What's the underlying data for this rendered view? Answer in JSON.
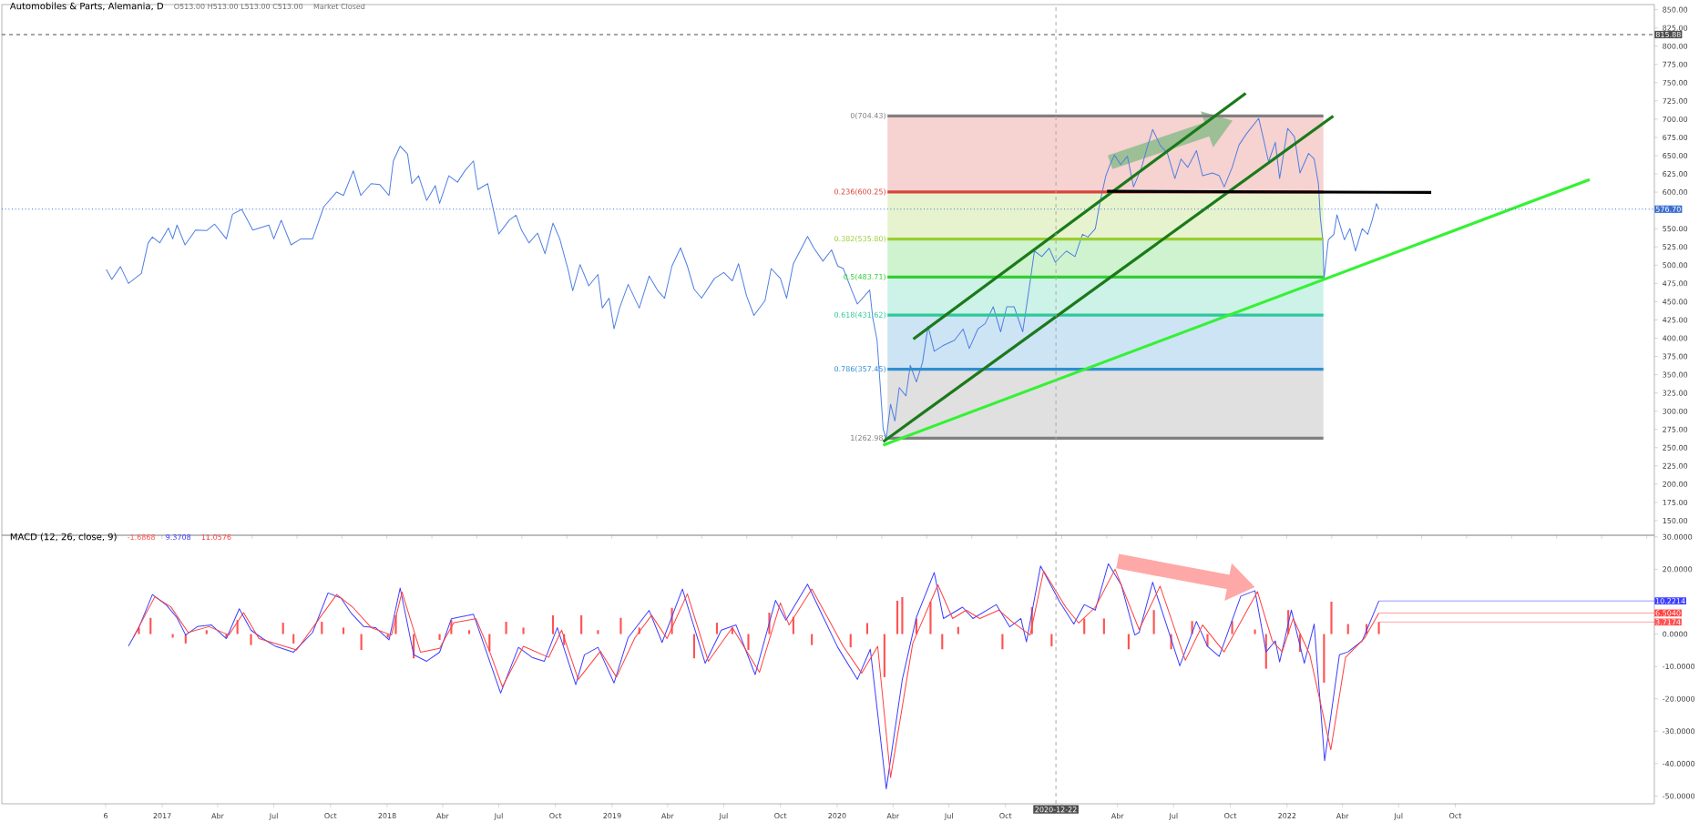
{
  "chart_data": [
    {
      "type": "line",
      "title": "Automobiles & Parts, Alemania, D",
      "annotations": [
        "O513.00 H513.00 L513.00 C513.00",
        "Market Closed"
      ],
      "xlim": [
        "2016-04-15",
        "2023-08-20"
      ],
      "ylim": [
        130,
        857
      ],
      "yticks": [
        {
          "value": 150,
          "label": "150.00"
        },
        {
          "value": 175,
          "label": "175.00"
        },
        {
          "value": 200,
          "label": "200.00"
        },
        {
          "value": 225,
          "label": "225.00"
        },
        {
          "value": 250,
          "label": "250.00"
        },
        {
          "value": 275,
          "label": "275.00"
        },
        {
          "value": 300,
          "label": "300.00"
        },
        {
          "value": 325,
          "label": "325.00"
        },
        {
          "value": 350,
          "label": "350.00"
        },
        {
          "value": 375,
          "label": "375.00"
        },
        {
          "value": 400,
          "label": "400.00"
        },
        {
          "value": 425,
          "label": "425.00"
        },
        {
          "value": 450,
          "label": "450.00"
        },
        {
          "value": 475,
          "label": "475.00"
        },
        {
          "value": 500,
          "label": "500.00"
        },
        {
          "value": 525,
          "label": "525.00"
        },
        {
          "value": 550,
          "label": "550.00"
        },
        {
          "value": 575,
          "label": null
        },
        {
          "value": 600,
          "label": "600.00"
        },
        {
          "value": 625,
          "label": "625.00"
        },
        {
          "value": 650,
          "label": "650.00"
        },
        {
          "value": 675,
          "label": "675.00"
        },
        {
          "value": 700,
          "label": "700.00"
        },
        {
          "value": 725,
          "label": "725.00"
        },
        {
          "value": 750,
          "label": "750.00"
        },
        {
          "value": 775,
          "label": "775.00"
        },
        {
          "value": 800,
          "label": "800.00"
        },
        {
          "value": 825,
          "label": "825.00"
        },
        {
          "value": 850,
          "label": "850.00"
        }
      ],
      "tick_labels": "y",
      "ref_lines": [
        {
          "axis": "y",
          "value": 815.88,
          "label": "815.88",
          "color": "#4d4d4d",
          "line_style": "dashed"
        },
        {
          "axis": "y",
          "value": 576.7,
          "label": "576.70",
          "color": "#3d6fd1",
          "line_style": "dotted"
        },
        {
          "axis": "x",
          "value": "2020-12-22",
          "color": "#aaaaaa",
          "line_style": "dashed"
        }
      ],
      "series": [
        {
          "color": "#4f7fe3",
          "x": [
            "2016-10-02",
            "2016-10-11",
            "2016-10-25",
            "2016-11-07",
            "2016-11-28",
            "2016-12-09",
            "2016-12-16",
            "2016-12-28",
            "2017-01-11",
            "2017-01-18",
            "2017-01-25",
            "2017-02-07",
            "2017-02-24",
            "2017-03-14",
            "2017-03-27",
            "2017-04-15",
            "2017-04-25",
            "2017-05-10",
            "2017-05-28",
            "2017-06-23",
            "2017-07-01",
            "2017-07-13",
            "2017-07-29",
            "2017-08-14",
            "2017-09-02",
            "2017-09-20",
            "2017-10-11",
            "2017-10-22",
            "2017-11-07",
            "2017-11-19",
            "2017-12-06",
            "2017-12-20",
            "2018-01-04",
            "2018-01-11",
            "2018-01-22",
            "2018-02-03",
            "2018-02-10",
            "2018-02-21",
            "2018-03-06",
            "2018-03-20",
            "2018-03-27",
            "2018-04-11",
            "2018-04-25",
            "2018-05-07",
            "2018-05-21",
            "2018-05-28",
            "2018-06-13",
            "2018-06-23",
            "2018-07-01",
            "2018-07-18",
            "2018-07-29",
            "2018-08-07",
            "2018-08-19",
            "2018-09-02",
            "2018-09-14",
            "2018-09-27",
            "2018-10-08",
            "2018-10-22",
            "2018-10-29",
            "2018-11-10",
            "2018-11-24",
            "2018-12-09",
            "2018-12-16",
            "2018-12-27",
            "2019-01-04",
            "2019-01-13",
            "2019-01-27",
            "2019-02-14",
            "2019-03-02",
            "2019-03-16",
            "2019-03-27",
            "2019-04-08",
            "2019-04-22",
            "2019-05-03",
            "2019-05-14",
            "2019-05-26",
            "2019-06-16",
            "2019-07-01",
            "2019-07-15",
            "2019-07-25",
            "2019-08-07",
            "2019-08-19",
            "2019-09-06",
            "2019-09-16",
            "2019-10-01",
            "2019-10-11",
            "2019-10-22",
            "2019-11-14",
            "2019-11-24",
            "2019-12-09",
            "2019-12-23",
            "2020-01-02",
            "2020-01-11",
            "2020-01-25",
            "2020-02-03",
            "2020-02-23",
            "2020-02-28",
            "2020-03-06",
            "2020-03-11",
            "2020-03-16",
            "2020-03-21",
            "2020-03-28",
            "2020-04-04",
            "2020-04-11",
            "2020-04-22",
            "2020-04-29",
            "2020-05-09",
            "2020-05-19",
            "2020-05-28",
            "2020-06-07",
            "2020-06-21",
            "2020-07-10",
            "2020-07-24",
            "2020-08-03",
            "2020-08-17",
            "2020-08-29",
            "2020-09-11",
            "2020-09-23",
            "2020-10-03",
            "2020-10-15",
            "2020-10-29",
            "2020-11-10",
            "2020-11-17",
            "2020-11-29",
            "2020-12-11",
            "2020-12-21",
            "2021-01-08",
            "2021-01-22",
            "2021-02-03",
            "2021-02-12",
            "2021-02-24",
            "2021-03-04",
            "2021-03-13",
            "2021-03-20",
            "2021-03-27",
            "2021-04-06",
            "2021-04-17",
            "2021-04-27",
            "2021-05-10",
            "2021-05-19",
            "2021-05-28",
            "2021-06-09",
            "2021-06-21",
            "2021-07-03",
            "2021-07-13",
            "2021-07-24",
            "2021-08-07",
            "2021-08-17",
            "2021-09-02",
            "2021-09-13",
            "2021-09-21",
            "2021-10-04",
            "2021-10-15",
            "2021-10-27",
            "2021-11-16",
            "2021-11-24",
            "2021-12-02",
            "2021-12-13",
            "2021-12-20",
            "2022-01-02",
            "2022-01-13",
            "2022-01-22",
            "2022-02-05",
            "2022-02-14",
            "2022-02-21",
            "2022-02-24",
            "2022-02-28",
            "2022-03-02",
            "2022-03-09",
            "2022-03-18",
            "2022-03-23",
            "2022-04-04",
            "2022-04-13",
            "2022-04-22",
            "2022-05-03",
            "2022-05-12",
            "2022-05-19",
            "2022-05-26",
            "2022-05-30"
          ],
          "values": [
            494,
            480.5,
            498,
            475,
            488.6,
            530.5,
            538.6,
            530.5,
            550.8,
            536,
            554.9,
            527.8,
            548,
            547.4,
            556.2,
            536,
            569.8,
            576.5,
            548,
            554.9,
            536,
            561.6,
            527.8,
            536,
            536,
            579.9,
            600.2,
            595.5,
            629.3,
            595.5,
            611.7,
            610.3,
            595.5,
            642.8,
            663,
            652.3,
            611.7,
            622.5,
            588.7,
            609,
            584.6,
            622.5,
            613.7,
            629.3,
            642.8,
            603.6,
            611.7,
            573.1,
            542.7,
            561.6,
            568.4,
            548,
            530.5,
            544,
            515.7,
            557.6,
            536,
            492,
            465,
            500.8,
            471.7,
            487.3,
            441.3,
            454.8,
            412.9,
            441.3,
            473.7,
            441.3,
            485.2,
            465,
            454.8,
            498.8,
            523.8,
            498.8,
            467,
            454.8,
            481.8,
            490,
            478.5,
            502,
            458.2,
            431.1,
            451.4,
            495.4,
            481.8,
            454.8,
            502,
            539.3,
            523.8,
            505.5,
            521,
            498.8,
            495.4,
            465,
            446.7,
            466,
            427.8,
            397.2,
            336,
            275,
            263,
            309.4,
            286.5,
            332.3,
            320.9,
            362.9,
            340,
            366.7,
            416.3,
            382,
            389.6,
            397.2,
            412.5,
            385.8,
            412.5,
            420.1,
            443,
            408.7,
            443,
            443,
            408.7,
            477.4,
            519.4,
            511.8,
            523.2,
            504.1,
            519.4,
            511.8,
            542.3,
            538.5,
            550,
            588.1,
            622.5,
            637.8,
            650.8,
            637.8,
            649.2,
            607.2,
            634,
            660.7,
            685.9,
            664.5,
            653.1,
            618.7,
            645.4,
            634,
            656.9,
            622.5,
            626.3,
            622.5,
            607.2,
            634,
            664.5,
            679.8,
            701.2,
            672.2,
            641.6,
            668.3,
            618.7,
            687.4,
            676,
            626.3,
            653.1,
            645.4,
            611.1,
            565.2,
            534.7,
            481.2,
            534.7,
            542.3,
            569.1,
            534.7,
            550,
            519.4,
            550,
            542.3,
            561.4,
            584.3,
            576.7
          ]
        },
        {
          "name": "0(704.43)",
          "color": "#808080",
          "x": [
            "2020-03-23",
            "2022-03-01"
          ],
          "values": [
            704.43,
            704.43
          ]
        },
        {
          "name": "0.236(600.25)",
          "color": "#d9453b",
          "x": [
            "2020-03-23",
            "2022-03-01"
          ],
          "values": [
            600.25,
            600.25
          ],
          "lower": [
            600.25,
            600.25
          ],
          "upper": [
            704.43,
            704.43
          ]
        },
        {
          "name": "0.382(535.80)",
          "color": "#9acd32",
          "x": [
            "2020-03-23",
            "2022-03-01"
          ],
          "values": [
            535.8,
            535.8
          ],
          "lower": [
            535.8,
            535.8
          ],
          "upper": [
            600.25,
            600.25
          ]
        },
        {
          "name": "0.5(483.71)",
          "color": "#32cd32",
          "x": [
            "2020-03-23",
            "2022-03-01"
          ],
          "values": [
            483.71,
            483.71
          ],
          "lower": [
            483.71,
            483.71
          ],
          "upper": [
            535.8,
            535.8
          ]
        },
        {
          "name": "0.618(431.62)",
          "color": "#2ec99a",
          "x": [
            "2020-03-23",
            "2022-03-01"
          ],
          "values": [
            431.62,
            431.62
          ],
          "lower": [
            431.62,
            431.62
          ],
          "upper": [
            483.71,
            483.71
          ]
        },
        {
          "name": "0.786(357.45)",
          "color": "#2f8fd0",
          "x": [
            "2020-03-23",
            "2022-03-01"
          ],
          "values": [
            357.45,
            357.45
          ],
          "lower": [
            357.45,
            357.45
          ],
          "upper": [
            431.62,
            431.62
          ]
        },
        {
          "name": "1(262.98)",
          "color": "#808080",
          "x": [
            "2020-03-23",
            "2022-03-01"
          ],
          "values": [
            262.98,
            262.98
          ],
          "lower": [
            262.98,
            262.98
          ],
          "upper": [
            357.45,
            357.45
          ]
        },
        {
          "color": "#1a7a1a",
          "x": [
            "2020-05-04",
            "2021-10-26"
          ],
          "values": [
            398.8,
            735.5
          ]
        },
        {
          "color": "#1a7a1a",
          "x": [
            "2020-03-16",
            "2022-03-17"
          ],
          "values": [
            258.2,
            704.2
          ]
        },
        {
          "color": "#000000",
          "x": [
            "2021-03-15",
            "2022-08-23"
          ],
          "values": [
            601.1,
            599.6
          ]
        },
        {
          "color": "#33f233",
          "x": [
            "2020-03-16",
            "2023-05-07"
          ],
          "values": [
            253.6,
            617.2
          ]
        }
      ]
    },
    {
      "type": "line",
      "title": "MACD (12, 26, close, 9)",
      "annotations": [
        "-1.6868",
        "9.3708",
        "11.0576",
        {
          "text": "3.7174",
          "x": "2022-05-30",
          "y": 3.7174
        },
        {
          "text": "10.2214",
          "x": "2022-05-30",
          "y": 10.2214
        },
        {
          "text": "6.5040",
          "x": "2022-05-30",
          "y": 6.504
        }
      ],
      "xlim": [
        "2016-04-15",
        "2023-08-20"
      ],
      "xticks": [
        {
          "value": "2016-10-01",
          "label": "6"
        },
        {
          "value": "2017-01-01",
          "label": "2017"
        },
        {
          "value": "2017-04-01",
          "label": "Abr"
        },
        {
          "value": "2017-07-01",
          "label": "Jul"
        },
        {
          "value": "2017-10-01",
          "label": "Oct"
        },
        {
          "value": "2018-01-01",
          "label": "2018"
        },
        {
          "value": "2018-04-01",
          "label": "Abr"
        },
        {
          "value": "2018-07-01",
          "label": "Jul"
        },
        {
          "value": "2018-10-01",
          "label": "Oct"
        },
        {
          "value": "2019-01-01",
          "label": "2019"
        },
        {
          "value": "2019-04-01",
          "label": "Abr"
        },
        {
          "value": "2019-07-01",
          "label": "Jul"
        },
        {
          "value": "2019-10-01",
          "label": "Oct"
        },
        {
          "value": "2020-01-01",
          "label": "2020"
        },
        {
          "value": "2020-04-01",
          "label": "Abr"
        },
        {
          "value": "2020-07-01",
          "label": "Jul"
        },
        {
          "value": "2020-10-01",
          "label": "Oct"
        },
        {
          "value": "2021-01-01",
          "label": null
        },
        {
          "value": "2021-04-01",
          "label": "Abr"
        },
        {
          "value": "2021-07-01",
          "label": "Jul"
        },
        {
          "value": "2021-10-01",
          "label": "Oct"
        },
        {
          "value": "2022-01-01",
          "label": "2022"
        },
        {
          "value": "2022-04-01",
          "label": "Abr"
        },
        {
          "value": "2022-07-01",
          "label": "Jul"
        },
        {
          "value": "2022-10-01",
          "label": "Oct"
        }
      ],
      "ylim": [
        -52.4,
        30.5
      ],
      "yticks": [
        {
          "value": -50,
          "label": "-50.0000"
        },
        {
          "value": -40,
          "label": "-40.0000"
        },
        {
          "value": -30,
          "label": "-30.0000"
        },
        {
          "value": -20,
          "label": "-20.0000"
        },
        {
          "value": -10,
          "label": "-10.0000"
        },
        {
          "value": 0,
          "label": "0.0000"
        },
        {
          "value": 10,
          "label": null
        },
        {
          "value": 20,
          "label": "20.0000"
        },
        {
          "value": 30,
          "label": "30.0000"
        }
      ],
      "ref_lines": [
        {
          "axis": "x",
          "value": "2020-12-22",
          "label": "2020-12-22",
          "color": "#aaaaaa",
          "line_style": "dashed"
        }
      ],
      "series": [
        {
          "type": "bar",
          "color": "#ff5252",
          "x": [
            "2016-11-24",
            "2016-12-13",
            "2017-01-18",
            "2017-02-08",
            "2017-03-14",
            "2017-04-15",
            "2017-05-03",
            "2017-05-25",
            "2017-07-16",
            "2017-08-02",
            "2017-09-17",
            "2017-10-22",
            "2017-11-20",
            "2018-01-02",
            "2018-01-15",
            "2018-02-13",
            "2018-03-27",
            "2018-04-15",
            "2018-05-14",
            "2018-06-16",
            "2018-07-13",
            "2018-08-10",
            "2018-09-27",
            "2018-10-15",
            "2018-11-12",
            "2018-12-09",
            "2019-01-15",
            "2019-02-14",
            "2019-04-08",
            "2019-05-14",
            "2019-06-20",
            "2019-07-15",
            "2019-08-10",
            "2019-09-13",
            "2019-10-22",
            "2019-11-21",
            "2020-01-23",
            "2020-02-19",
            "2020-03-18",
            "2020-04-08",
            "2020-04-16",
            "2020-05-09",
            "2020-06-01",
            "2020-06-20",
            "2020-07-16",
            "2020-09-26",
            "2020-11-13",
            "2020-12-15",
            "2021-02-06",
            "2021-03-10",
            "2021-04-19",
            "2021-05-30",
            "2021-06-27",
            "2021-07-31",
            "2021-08-25",
            "2021-10-04",
            "2021-11-10",
            "2021-11-28",
            "2022-01-03",
            "2022-01-22",
            "2022-03-02",
            "2022-03-14",
            "2022-04-10",
            "2022-05-10",
            "2022-05-30"
          ],
          "values": [
            2.0,
            5.0,
            -1.1,
            -2.9,
            1.2,
            -1.1,
            4.3,
            -3.4,
            3.5,
            -2.9,
            3.8,
            2.0,
            -4.9,
            -1.1,
            5.8,
            -7.5,
            -1.8,
            4.3,
            1.2,
            -5.3,
            3.8,
            2.0,
            5.8,
            -3.4,
            5.8,
            1.2,
            5.0,
            2.0,
            8.1,
            -7.5,
            3.5,
            2.0,
            -4.9,
            6.6,
            5.3,
            -3.4,
            -4.1,
            3.4,
            -13.3,
            10.3,
            11.4,
            4.8,
            10.0,
            -4.7,
            2.2,
            -4.7,
            8.3,
            -3.8,
            4.8,
            4.8,
            -4.7,
            7.4,
            -4.7,
            4.0,
            -3.8,
            4.0,
            1.4,
            -10.7,
            7.4,
            -5.5,
            -15.0,
            10.0,
            3.1,
            3.1,
            3.7174
          ]
        },
        {
          "color": "#3d3dff",
          "x": [
            "2016-11-07",
            "2016-11-24",
            "2016-12-16",
            "2017-01-08",
            "2017-01-25",
            "2017-02-08",
            "2017-02-27",
            "2017-03-22",
            "2017-04-15",
            "2017-05-06",
            "2017-05-25",
            "2017-06-13",
            "2017-07-04",
            "2017-08-02",
            "2017-09-02",
            "2017-09-27",
            "2017-10-18",
            "2017-11-03",
            "2017-11-24",
            "2017-12-13",
            "2018-01-04",
            "2018-01-22",
            "2018-02-13",
            "2018-03-06",
            "2018-03-27",
            "2018-04-15",
            "2018-05-21",
            "2018-06-09",
            "2018-07-04",
            "2018-08-02",
            "2018-08-24",
            "2018-09-13",
            "2018-10-04",
            "2018-11-03",
            "2018-11-17",
            "2018-12-09",
            "2019-01-04",
            "2019-01-27",
            "2019-03-02",
            "2019-03-23",
            "2019-04-25",
            "2019-06-01",
            "2019-06-27",
            "2019-07-21",
            "2019-08-21",
            "2019-09-23",
            "2019-10-10",
            "2019-11-14",
            "2019-12-06",
            "2020-01-02",
            "2020-02-03",
            "2020-02-24",
            "2020-03-21",
            "2020-04-16",
            "2020-05-09",
            "2020-06-07",
            "2020-06-22",
            "2020-07-23",
            "2020-08-09",
            "2020-09-16",
            "2020-10-08",
            "2020-10-26",
            "2020-11-04",
            "2020-11-27",
            "2020-12-28",
            "2021-01-20",
            "2021-02-06",
            "2021-02-24",
            "2021-03-17",
            "2021-04-07",
            "2021-04-29",
            "2021-05-06",
            "2021-05-28",
            "2021-06-19",
            "2021-07-11",
            "2021-08-07",
            "2021-08-25",
            "2021-09-13",
            "2021-10-18",
            "2021-11-10",
            "2021-11-28",
            "2021-12-13",
            "2021-12-20",
            "2022-01-08",
            "2022-01-29",
            "2022-02-14",
            "2022-03-03",
            "2022-03-27",
            "2022-04-10",
            "2022-05-03",
            "2022-05-30"
          ],
          "values": [
            -3.7,
            2.0,
            12.2,
            8.9,
            5.0,
            -0.3,
            2.3,
            2.8,
            -1.4,
            7.8,
            1.2,
            -1.4,
            -3.8,
            -5.6,
            0.5,
            12.7,
            11.1,
            6.6,
            2.3,
            2.0,
            -1.8,
            14.2,
            -6.4,
            -8.4,
            -5.6,
            4.7,
            6.1,
            -4.4,
            -18.2,
            -4.1,
            -7.2,
            -8.4,
            2.0,
            -15.6,
            -6.4,
            -4.1,
            -15.1,
            -1.1,
            7.3,
            -2.6,
            13.9,
            -9.0,
            1.2,
            2.8,
            -12.5,
            10.4,
            4.3,
            15.4,
            6.6,
            -4.1,
            -14.0,
            -4.7,
            -47.8,
            -14.1,
            5.2,
            19.0,
            4.8,
            8.3,
            4.8,
            9.1,
            2.2,
            4.8,
            -2.4,
            21.0,
            10.0,
            3.1,
            9.1,
            7.4,
            21.7,
            15.2,
            -0.3,
            0.5,
            16.0,
            3.1,
            -9.8,
            3.9,
            -3.8,
            -6.9,
            11.7,
            13.4,
            -5.5,
            -2.1,
            -8.6,
            7.4,
            -9.0,
            3.1,
            -39.1,
            -6.4,
            -5.5,
            -2.1,
            10.2214
          ]
        },
        {
          "color": "#ff4040",
          "x": [
            "2016-11-15",
            "2016-12-20",
            "2017-01-15",
            "2017-02-12",
            "2017-03-18",
            "2017-04-19",
            "2017-05-13",
            "2017-06-07",
            "2017-08-07",
            "2017-10-11",
            "2017-11-07",
            "2017-12-06",
            "2018-01-08",
            "2018-01-25",
            "2018-02-24",
            "2018-03-27",
            "2018-04-19",
            "2018-05-25",
            "2018-06-16",
            "2018-07-07",
            "2018-08-10",
            "2018-09-20",
            "2018-10-11",
            "2018-11-07",
            "2018-12-13",
            "2019-01-08",
            "2019-02-07",
            "2019-03-06",
            "2019-03-31",
            "2019-05-03",
            "2019-06-06",
            "2019-07-15",
            "2019-08-28",
            "2019-10-01",
            "2019-10-15",
            "2019-11-21",
            "2019-12-16",
            "2020-01-11",
            "2020-02-10",
            "2020-03-07",
            "2020-03-28",
            "2020-05-03",
            "2020-06-13",
            "2020-07-07",
            "2020-07-29",
            "2020-08-20",
            "2020-09-20",
            "2020-10-11",
            "2020-11-10",
            "2020-12-02",
            "2021-01-07",
            "2021-01-28",
            "2021-02-24",
            "2021-03-28",
            "2021-05-06",
            "2021-06-09",
            "2021-07-20",
            "2021-08-17",
            "2021-09-21",
            "2021-11-14",
            "2021-12-08",
            "2021-12-24",
            "2022-01-11",
            "2022-02-07",
            "2022-03-13",
            "2022-04-06",
            "2022-05-07",
            "2022-05-30"
          ],
          "values": [
            -1.0,
            11.5,
            8.4,
            0.5,
            2.3,
            -0.3,
            6.6,
            -1.4,
            -4.9,
            12.2,
            8.1,
            2.0,
            -0.3,
            13.0,
            -5.6,
            -4.4,
            3.5,
            4.7,
            -5.3,
            -16.3,
            -3.8,
            -7.2,
            1.2,
            -14.0,
            -5.3,
            -13.3,
            -1.1,
            5.8,
            -1.4,
            12.4,
            -8.4,
            2.0,
            -11.8,
            9.6,
            2.8,
            13.9,
            5.3,
            -3.8,
            -12.1,
            -3.8,
            -44.3,
            -2.9,
            15.2,
            4.8,
            7.4,
            4.8,
            7.4,
            3.9,
            -0.3,
            19.5,
            8.3,
            3.4,
            8.3,
            20.0,
            1.4,
            14.8,
            -8.1,
            2.8,
            -5.5,
            13.1,
            -2.1,
            -5.5,
            4.8,
            -6.4,
            -35.7,
            -7.2,
            -1.2,
            6.504
          ]
        }
      ]
    }
  ]
}
